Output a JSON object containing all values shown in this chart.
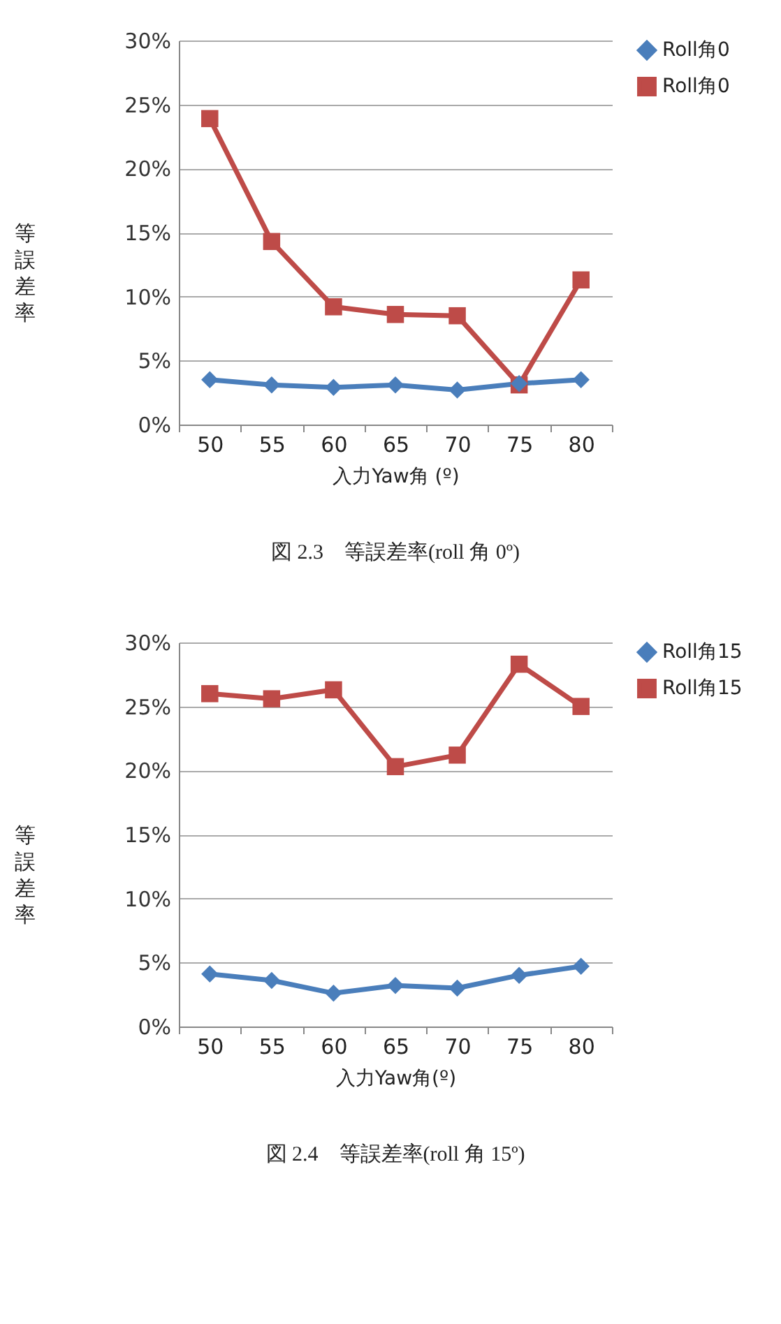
{
  "chart_data": [
    {
      "type": "line",
      "xlabel": "入力Yaw角 (º)",
      "ylabel": "等誤差率",
      "categories": [
        "50",
        "55",
        "60",
        "65",
        "70",
        "75",
        "80"
      ],
      "series": [
        {
          "name": "Roll角0",
          "color": "#4a7ebb",
          "marker": "diamond",
          "values": [
            3.5,
            3.1,
            2.9,
            3.1,
            2.7,
            3.2,
            3.5
          ]
        },
        {
          "name": "Roll角0",
          "color": "#be4b48",
          "marker": "square",
          "values": [
            23.9,
            14.3,
            9.2,
            8.6,
            8.5,
            3.1,
            11.3
          ]
        }
      ],
      "ylim": [
        0,
        30
      ],
      "yticks": [
        {
          "value": 0,
          "label": "0%"
        },
        {
          "value": 5,
          "label": "5%"
        },
        {
          "value": 10,
          "label": "10%"
        },
        {
          "value": 15,
          "label": "15%"
        },
        {
          "value": 20,
          "label": "20%"
        },
        {
          "value": 25,
          "label": "25%"
        },
        {
          "value": 30,
          "label": "30%"
        }
      ],
      "grid": "y",
      "legend": "right",
      "annotations": [
        "図 2.3　等誤差率(roll 角 0º)"
      ]
    },
    {
      "type": "line",
      "xlabel": "入力Yaw角(º)",
      "ylabel": "等誤差率",
      "categories": [
        "50",
        "55",
        "60",
        "65",
        "70",
        "75",
        "80"
      ],
      "series": [
        {
          "name": "Roll角15",
          "color": "#4a7ebb",
          "marker": "diamond",
          "values": [
            4.1,
            3.6,
            2.6,
            3.2,
            3.0,
            4.0,
            4.7
          ]
        },
        {
          "name": "Roll角15",
          "color": "#be4b48",
          "marker": "square",
          "values": [
            26.0,
            25.6,
            26.3,
            20.3,
            21.2,
            28.3,
            25.0
          ]
        }
      ],
      "ylim": [
        0,
        30
      ],
      "yticks": [
        {
          "value": 0,
          "label": "0%"
        },
        {
          "value": 5,
          "label": "5%"
        },
        {
          "value": 10,
          "label": "10%"
        },
        {
          "value": 15,
          "label": "15%"
        },
        {
          "value": 20,
          "label": "20%"
        },
        {
          "value": 25,
          "label": "25%"
        },
        {
          "value": 30,
          "label": "30%"
        }
      ],
      "grid": "y",
      "legend": "right",
      "annotations": [
        "図 2.4　等誤差率(roll 角 15º)"
      ]
    }
  ]
}
